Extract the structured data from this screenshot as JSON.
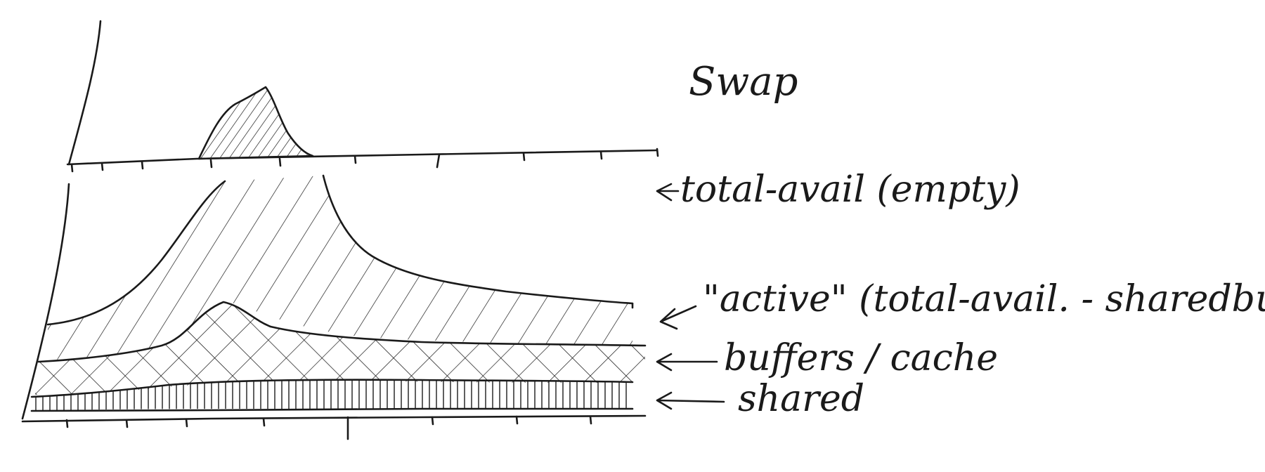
{
  "labels": {
    "swap": "Swap",
    "total_avail": "total-avail   (empty)",
    "active": "\"active\" (total-avail. - sharedbuff)",
    "buffers": "buffers / cache",
    "shared": "shared"
  },
  "colors": {
    "ink": "#1a1a1a",
    "paper": "#ffffff"
  },
  "hatch_patterns": [
    "dense-diagonal",
    "diagonal",
    "crosshatch",
    "vertical"
  ]
}
